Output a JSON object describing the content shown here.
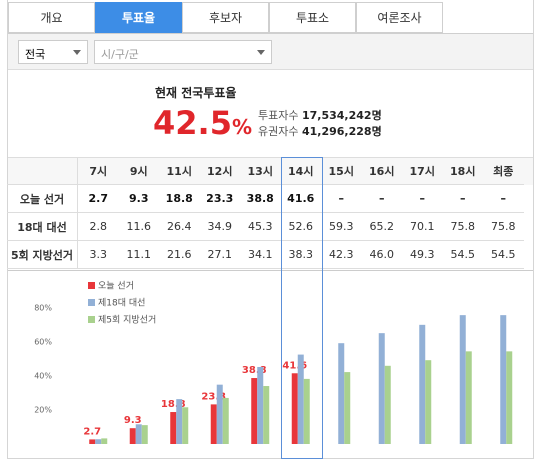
{
  "tabs": {
    "items": [
      "개요",
      "투표율",
      "후보자",
      "투표소",
      "여론조사"
    ],
    "active": 1
  },
  "filters": {
    "region": "전국",
    "district": "시/구/군"
  },
  "summary": {
    "title": "현재 전국투표율",
    "rate": "42.5",
    "rate_unit": "%",
    "voters_label": "투표자수",
    "voters": "17,534,242명",
    "eligible_label": "유권자수",
    "eligible": "41,296,228명"
  },
  "table": {
    "header": [
      "7시",
      "9시",
      "11시",
      "12시",
      "13시",
      "14시",
      "15시",
      "16시",
      "17시",
      "18시",
      "최종"
    ],
    "highlight": 5,
    "rows": [
      [
        "오늘 선거",
        "2.7",
        "9.3",
        "18.8",
        "23.3",
        "38.8",
        "41.6",
        "–",
        "–",
        "–",
        "–",
        "–"
      ],
      [
        "18대 대선",
        "2.8",
        "11.6",
        "26.4",
        "34.9",
        "45.3",
        "52.6",
        "59.3",
        "65.2",
        "70.1",
        "75.8",
        "75.8"
      ],
      [
        "5회 지방선거",
        "3.3",
        "11.1",
        "21.6",
        "27.1",
        "34.1",
        "38.3",
        "42.3",
        "46.0",
        "49.3",
        "54.5",
        "54.5"
      ]
    ]
  },
  "chart_data": {
    "type": "bar",
    "legend": "top-left",
    "ylim": [
      0,
      100
    ],
    "yticks": [
      {
        "value": 20,
        "label": "20%"
      },
      {
        "value": 40,
        "label": "40%"
      },
      {
        "value": 60,
        "label": "60%"
      },
      {
        "value": 80,
        "label": "80%"
      }
    ],
    "series": [
      {
        "name": "오늘 선거",
        "color": "#e8363a",
        "labels": true,
        "values": [
          2.7,
          9.3,
          18.8,
          23.3,
          38.8,
          41.6,
          null,
          null,
          null,
          null,
          null
        ]
      },
      {
        "name": "제18대 대선",
        "color": "#92b0d6",
        "values": [
          2.8,
          11.6,
          26.4,
          34.9,
          45.3,
          52.6,
          59.3,
          65.2,
          70.1,
          75.8,
          75.8
        ]
      },
      {
        "name": "제5회 지방선거",
        "color": "#a9d18e",
        "values": [
          3.3,
          11.1,
          21.6,
          27.1,
          34.1,
          38.3,
          42.3,
          46.0,
          49.3,
          54.5,
          54.5
        ]
      }
    ]
  }
}
